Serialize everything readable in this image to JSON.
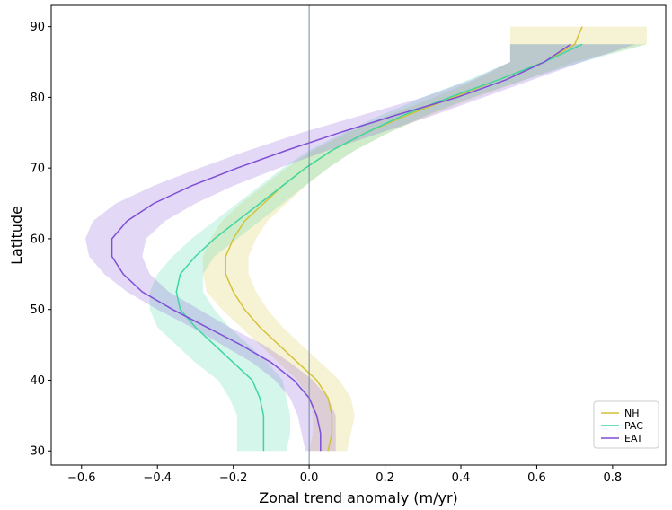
{
  "chart_data": {
    "type": "line",
    "xlabel": "Zonal trend anomaly (m/yr)",
    "ylabel": "Latitude",
    "xlim": [
      -0.68,
      0.94
    ],
    "ylim": [
      28,
      93
    ],
    "xticks": [
      -0.6,
      -0.4,
      -0.2,
      0.0,
      0.2,
      0.4,
      0.6,
      0.8
    ],
    "xtick_labels": [
      "−0.6",
      "−0.4",
      "−0.2",
      "0.0",
      "0.2",
      "0.4",
      "0.6",
      "0.8"
    ],
    "yticks": [
      30,
      40,
      50,
      60,
      70,
      80,
      90
    ],
    "ytick_labels": [
      "30",
      "40",
      "50",
      "60",
      "70",
      "80",
      "90"
    ],
    "reference_line_x": 0,
    "legend_position": "lower-right",
    "grid": false,
    "series": [
      {
        "name": "NH",
        "color": "#d4c23a",
        "lat": [
          30,
          32.5,
          35,
          37.5,
          40,
          42.5,
          45,
          47.5,
          50,
          52.5,
          55,
          57.5,
          60,
          62.5,
          65,
          67.5,
          70,
          72.5,
          75,
          77.5,
          80,
          82.5,
          85,
          87.5,
          90
        ],
        "mean": [
          0.05,
          0.06,
          0.06,
          0.05,
          0.02,
          -0.03,
          -0.08,
          -0.13,
          -0.17,
          -0.2,
          -0.22,
          -0.22,
          -0.2,
          -0.17,
          -0.12,
          -0.07,
          -0.01,
          0.06,
          0.15,
          0.26,
          0.38,
          0.5,
          0.62,
          0.7,
          0.72
        ],
        "lower": [
          0.0,
          0.01,
          0.01,
          0.0,
          -0.03,
          -0.08,
          -0.13,
          -0.18,
          -0.23,
          -0.27,
          -0.28,
          -0.28,
          -0.26,
          -0.23,
          -0.18,
          -0.12,
          -0.06,
          0.01,
          0.1,
          0.21,
          0.33,
          0.44,
          0.53,
          0.53,
          0.53
        ],
        "upper": [
          0.1,
          0.11,
          0.12,
          0.11,
          0.08,
          0.03,
          -0.02,
          -0.07,
          -0.11,
          -0.14,
          -0.16,
          -0.16,
          -0.14,
          -0.11,
          -0.06,
          -0.01,
          0.05,
          0.12,
          0.21,
          0.32,
          0.44,
          0.57,
          0.7,
          0.89,
          0.89
        ]
      },
      {
        "name": "PAC",
        "color": "#3ed6a2",
        "lat": [
          30,
          32.5,
          35,
          37.5,
          40,
          42.5,
          45,
          47.5,
          50,
          52.5,
          55,
          57.5,
          60,
          62.5,
          65,
          67.5,
          70,
          72.5,
          75,
          77.5,
          80,
          82.5,
          85,
          87.5
        ],
        "mean": [
          -0.12,
          -0.12,
          -0.12,
          -0.13,
          -0.15,
          -0.2,
          -0.25,
          -0.3,
          -0.34,
          -0.35,
          -0.34,
          -0.3,
          -0.25,
          -0.19,
          -0.13,
          -0.07,
          -0.01,
          0.06,
          0.15,
          0.25,
          0.37,
          0.5,
          0.62,
          0.72
        ],
        "lower": [
          -0.19,
          -0.19,
          -0.19,
          -0.21,
          -0.24,
          -0.3,
          -0.35,
          -0.4,
          -0.42,
          -0.42,
          -0.4,
          -0.36,
          -0.31,
          -0.25,
          -0.19,
          -0.13,
          -0.07,
          0.0,
          0.09,
          0.19,
          0.3,
          0.42,
          0.53,
          0.53
        ],
        "upper": [
          -0.06,
          -0.05,
          -0.05,
          -0.06,
          -0.07,
          -0.11,
          -0.16,
          -0.21,
          -0.25,
          -0.28,
          -0.28,
          -0.25,
          -0.19,
          -0.13,
          -0.07,
          -0.01,
          0.05,
          0.12,
          0.21,
          0.31,
          0.43,
          0.57,
          0.72,
          0.89
        ]
      },
      {
        "name": "EAT",
        "color": "#7e4fd6",
        "lat": [
          30,
          32.5,
          35,
          37.5,
          40,
          42.5,
          45,
          47.5,
          50,
          52.5,
          55,
          57.5,
          60,
          62.5,
          65,
          67.5,
          70,
          72.5,
          75,
          77.5,
          80,
          82.5,
          85,
          87.5
        ],
        "mean": [
          0.03,
          0.03,
          0.02,
          0.0,
          -0.04,
          -0.1,
          -0.18,
          -0.27,
          -0.36,
          -0.44,
          -0.49,
          -0.52,
          -0.52,
          -0.48,
          -0.41,
          -0.31,
          -0.19,
          -0.06,
          0.08,
          0.23,
          0.39,
          0.52,
          0.62,
          0.69
        ],
        "lower": [
          -0.01,
          -0.02,
          -0.03,
          -0.05,
          -0.09,
          -0.15,
          -0.23,
          -0.31,
          -0.4,
          -0.48,
          -0.54,
          -0.58,
          -0.59,
          -0.57,
          -0.51,
          -0.41,
          -0.29,
          -0.16,
          -0.02,
          0.14,
          0.3,
          0.43,
          0.53,
          0.53
        ],
        "upper": [
          0.07,
          0.07,
          0.07,
          0.05,
          0.01,
          -0.05,
          -0.12,
          -0.21,
          -0.29,
          -0.37,
          -0.42,
          -0.44,
          -0.43,
          -0.38,
          -0.3,
          -0.2,
          -0.08,
          0.05,
          0.19,
          0.33,
          0.46,
          0.59,
          0.72,
          0.86
        ]
      }
    ]
  }
}
